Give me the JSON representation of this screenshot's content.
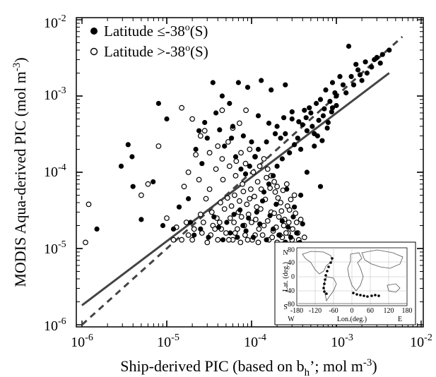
{
  "chart_data": {
    "type": "scatter",
    "scale": "log-log",
    "xlabel": {
      "text": "Ship-derived PIC (based on b",
      "sub": "h",
      "text2": "’; mol m",
      "sup": "-3",
      "text3": ")"
    },
    "ylabel": {
      "text": "MODIS Aqua-derived PIC (mol m",
      "sup": "-3",
      "text2": ")"
    },
    "xlim": [
      1e-06,
      0.01
    ],
    "ylim": [
      1e-06,
      0.01
    ],
    "ticks": [
      {
        "base": "10",
        "exp": "-6"
      },
      {
        "base": "10",
        "exp": "-5"
      },
      {
        "base": "10",
        "exp": "-4"
      },
      {
        "base": "10",
        "exp": "-3"
      },
      {
        "base": "10",
        "exp": "-2"
      }
    ],
    "legend_position": "top-left",
    "series": [
      {
        "name": "Latitude ≤-38°(S)",
        "legend": {
          "a": "Latitude ≤-38",
          "sup": "o",
          "b": "(S)"
        },
        "marker": "filled",
        "color": "#000000",
        "points": [
          [
            1.5e-06,
            1.8e-05
          ],
          [
            3.5e-06,
            0.00023
          ],
          [
            2.9e-06,
            0.00012
          ],
          [
            3.9e-06,
            0.00016
          ],
          [
            4e-06,
            6.5e-05
          ],
          [
            5e-06,
            2.4e-05
          ],
          [
            6.9e-06,
            7.5e-05
          ],
          [
            8e-06,
            0.0008
          ],
          [
            9e-06,
            2e-05
          ],
          [
            1e-05,
            0.0005
          ],
          [
            1.2e-05,
            1.8e-05
          ],
          [
            1.4e-05,
            3.5e-05
          ],
          [
            1.8e-05,
            4.5e-05
          ],
          [
            2.2e-05,
            0.0002
          ],
          [
            2.8e-05,
            0.00045
          ],
          [
            3.5e-05,
            0.0015
          ],
          [
            4.5e-05,
            0.001
          ],
          [
            5.5e-05,
            0.0008
          ],
          [
            7e-05,
            0.0015
          ],
          [
            9e-05,
            0.0013
          ],
          [
            0.00013,
            0.0016
          ],
          [
            0.00017,
            0.0012
          ],
          [
            0.00025,
            0.0014
          ],
          [
            6e-05,
            0.0004
          ],
          [
            8e-05,
            0.0003
          ],
          [
            0.00012,
            0.00055
          ],
          [
            0.00015,
            0.00025
          ],
          [
            0.0002,
            0.0004
          ],
          [
            0.00025,
            0.00032
          ],
          [
            0.0003,
            0.0005
          ],
          [
            0.00035,
            0.00028
          ],
          [
            0.0004,
            0.00042
          ],
          [
            0.00045,
            0.00035
          ],
          [
            0.0005,
            0.0006
          ],
          [
            0.00055,
            0.00022
          ],
          [
            0.0006,
            0.0003
          ],
          [
            0.0007,
            0.00055
          ],
          [
            0.0008,
            0.00045
          ],
          [
            0.0009,
            0.0007
          ],
          [
            0.001,
            0.001
          ],
          [
            0.0012,
            0.0014
          ],
          [
            0.0015,
            0.0018
          ],
          [
            0.0018,
            0.0022
          ],
          [
            0.0022,
            0.0028
          ],
          [
            0.0026,
            0.0024
          ],
          [
            0.003,
            0.0032
          ],
          [
            0.0035,
            0.0035
          ],
          [
            0.0042,
            0.004
          ],
          [
            0.0014,
            0.0045
          ],
          [
            0.0011,
            0.0018
          ],
          [
            0.0009,
            0.0015
          ],
          [
            0.00075,
            0.0012
          ],
          [
            0.00065,
            0.0009
          ],
          [
            0.00058,
            0.0008
          ],
          [
            0.00048,
            0.0007
          ],
          [
            0.00042,
            0.00065
          ],
          [
            0.00038,
            0.0002
          ],
          [
            0.00032,
            0.00023
          ],
          [
            0.00028,
            0.00018
          ],
          [
            0.00023,
            0.00015
          ],
          [
            0.0002,
            0.00012
          ],
          [
            0.00018,
            9e-05
          ],
          [
            0.00016,
            7e-05
          ],
          [
            0.00014,
            5.5e-05
          ],
          [
            0.00026,
            6e-05
          ],
          [
            0.00032,
            3.5e-05
          ],
          [
            0.00038,
            5e-05
          ],
          [
            0.00045,
            0.0001
          ],
          [
            0.00065,
            6.5e-05
          ],
          [
            0.00012,
            0.0002
          ],
          [
            0.0001,
            0.00025
          ],
          [
            0.00011,
            0.00016
          ],
          [
            9.5e-05,
            0.00012
          ],
          [
            8.5e-05,
            9.5e-05
          ],
          [
            7.5e-05,
            0.00011
          ],
          [
            6.5e-05,
            0.00016
          ],
          [
            5.8e-05,
            0.00028
          ],
          [
            4.8e-05,
            0.00022
          ],
          [
            4.2e-05,
            0.00036
          ],
          [
            3.8e-05,
            0.0006
          ],
          [
            3e-05,
            0.00028
          ],
          [
            2.6e-05,
            0.00013
          ],
          [
            2.4e-05,
            0.00035
          ],
          [
            1.9e-05,
            2.2e-05
          ],
          [
            2.1e-05,
            1.5e-05
          ],
          [
            2.5e-05,
            1.8e-05
          ],
          [
            3.1e-05,
            1.4e-05
          ],
          [
            3.6e-05,
            2.6e-05
          ],
          [
            4.1e-05,
            1.9e-05
          ],
          [
            4.6e-05,
            1.3e-05
          ],
          [
            5.1e-05,
            2.2e-05
          ],
          [
            5.6e-05,
            1.6e-05
          ],
          [
            6.2e-05,
            2.8e-05
          ],
          [
            6.8e-05,
            1.4e-05
          ],
          [
            7.3e-05,
            3.2e-05
          ],
          [
            7.9e-05,
            2e-05
          ],
          [
            8.6e-05,
            1.7e-05
          ],
          [
            9.2e-05,
            2.5e-05
          ],
          [
            0.000105,
            1.4e-05
          ],
          [
            0.000115,
            3e-05
          ],
          [
            0.000125,
            2.1e-05
          ],
          [
            0.000135,
            4.2e-05
          ],
          [
            0.00015,
            1.3e-05
          ],
          [
            0.000165,
            2.7e-05
          ],
          [
            0.00018,
            1.8e-05
          ],
          [
            0.000195,
            3.8e-05
          ],
          [
            0.00021,
            1.5e-05
          ],
          [
            0.00023,
            2.3e-05
          ],
          [
            0.00025,
            1.2e-05
          ],
          [
            0.00027,
            1.9e-05
          ],
          [
            0.00029,
            1.4e-05
          ],
          [
            0.00031,
            2.6e-05
          ],
          [
            0.00034,
            1.6e-05
          ],
          [
            0.00037,
            1.2e-05
          ],
          [
            0.0004,
            2.1e-05
          ],
          [
            0.00055,
            0.00032
          ],
          [
            0.00062,
            0.00048
          ],
          [
            0.00072,
            0.00068
          ],
          [
            0.00084,
            0.00085
          ],
          [
            0.00096,
            0.0011
          ],
          [
            0.0013,
            0.0011
          ],
          [
            0.0016,
            0.0014
          ],
          [
            0.0019,
            0.0019
          ],
          [
            0.0023,
            0.002
          ],
          [
            0.0028,
            0.003
          ],
          [
            0.0017,
            0.0026
          ],
          [
            0.002,
            0.0016
          ],
          [
            0.0033,
            0.0027
          ],
          [
            0.001,
            0.00075
          ],
          [
            0.00088,
            0.00062
          ],
          [
            0.00078,
            0.00038
          ],
          [
            0.00068,
            0.00026
          ],
          [
            0.00052,
            0.0004
          ],
          [
            0.00044,
            0.00052
          ],
          [
            0.00036,
            0.00046
          ],
          [
            0.0003,
            0.00062
          ],
          [
            0.00024,
            0.00052
          ],
          [
            0.00022,
            0.00028
          ],
          [
            0.00019,
            0.00032
          ],
          [
            0.00016,
            0.00044
          ]
        ]
      },
      {
        "name": "Latitude >-38°(S)",
        "legend": {
          "a": "Latitude >-38",
          "sup": "o",
          "b": "(S)"
        },
        "marker": "open",
        "color": "#000000",
        "points": [
          [
            1.2e-06,
            3.8e-05
          ],
          [
            1.1e-06,
            1.2e-05
          ],
          [
            5e-06,
            5e-05
          ],
          [
            6e-06,
            7e-05
          ],
          [
            8e-06,
            0.00022
          ],
          [
            1e-05,
            2.5e-05
          ],
          [
            1.2e-05,
            1.3e-05
          ],
          [
            1.5e-05,
            1.3e-05
          ],
          [
            1.8e-05,
            1.5e-05
          ],
          [
            2e-05,
            1.3e-05
          ],
          [
            2.2e-05,
            0.00017
          ],
          [
            2.5e-05,
            2.8e-05
          ],
          [
            2.8e-05,
            0.00035
          ],
          [
            3e-05,
            1.2e-05
          ],
          [
            3.2e-05,
            6e-05
          ],
          [
            3.5e-05,
            2e-05
          ],
          [
            3.8e-05,
            0.00011
          ],
          [
            4e-05,
            1.3e-05
          ],
          [
            4.3e-05,
            4e-05
          ],
          [
            4.6e-05,
            8e-05
          ],
          [
            5e-05,
            1.6e-05
          ],
          [
            5.3e-05,
            0.00025
          ],
          [
            5.6e-05,
            2.5e-05
          ],
          [
            6e-05,
            1.3e-05
          ],
          [
            6.3e-05,
            5e-05
          ],
          [
            6.6e-05,
            0.00014
          ],
          [
            7e-05,
            3e-05
          ],
          [
            7.4e-05,
            1.2e-05
          ],
          [
            7.8e-05,
            7e-05
          ],
          [
            8.2e-05,
            2e-05
          ],
          [
            8.6e-05,
            0.00065
          ],
          [
            9e-05,
            1.3e-05
          ],
          [
            9.5e-05,
            4.5e-05
          ],
          [
            0.0001,
            2.2e-05
          ],
          [
            0.000105,
            0.0001
          ],
          [
            0.00011,
            1.5e-05
          ],
          [
            0.000115,
            3.5e-05
          ],
          [
            0.00012,
            1.2e-05
          ],
          [
            0.00013,
            6e-05
          ],
          [
            0.00014,
            2e-05
          ],
          [
            0.00015,
            8.5e-05
          ],
          [
            0.00016,
            1.3e-05
          ],
          [
            0.00017,
            3e-05
          ],
          [
            0.00018,
            1.7e-05
          ],
          [
            0.00019,
            5.5e-05
          ],
          [
            0.0002,
            1.2e-05
          ],
          [
            0.00021,
            2.6e-05
          ],
          [
            0.00022,
            4e-05
          ],
          [
            0.00023,
            1.4e-05
          ],
          [
            0.00024,
            2e-05
          ],
          [
            0.00025,
            1.2e-05
          ],
          [
            0.00026,
            7e-05
          ],
          [
            0.00027,
            1.6e-05
          ],
          [
            0.00028,
            3.2e-05
          ],
          [
            0.0003,
            1.3e-05
          ],
          [
            0.00032,
            5e-05
          ],
          [
            0.00034,
            2.2e-05
          ],
          [
            0.00036,
            1.3e-05
          ],
          [
            1.5e-05,
            0.0007
          ],
          [
            2e-05,
            0.0005
          ],
          [
            2.5e-05,
            0.0003
          ],
          [
            3.2e-05,
            0.00018
          ],
          [
            4e-05,
            0.00022
          ],
          [
            4.5e-05,
            0.00015
          ],
          [
            5.5e-05,
            0.00012
          ],
          [
            6.5e-05,
            9e-05
          ],
          [
            7.5e-05,
            0.00018
          ],
          [
            8.5e-05,
            0.00013
          ],
          [
            9.5e-05,
            0.0002
          ],
          [
            0.00011,
            0.00016
          ],
          [
            0.000125,
            0.00012
          ],
          [
            0.00014,
            0.00015
          ],
          [
            0.000155,
            0.00011
          ],
          [
            0.00017,
            9e-05
          ],
          [
            0.000185,
            7.5e-05
          ],
          [
            0.0002,
            6.5e-05
          ],
          [
            4.5e-05,
            0.00065
          ],
          [
            6e-05,
            0.00038
          ],
          [
            7.2e-05,
            0.00044
          ],
          [
            1.8e-05,
            0.0001
          ],
          [
            1.6e-05,
            6.5e-05
          ],
          [
            2.4e-05,
            8e-05
          ],
          [
            2.9e-05,
            4.5e-05
          ],
          [
            3.4e-05,
            3e-05
          ],
          [
            3.9e-05,
            2.5e-05
          ],
          [
            4.4e-05,
            1.8e-05
          ],
          [
            4.8e-05,
            3.3e-05
          ],
          [
            5.2e-05,
            4.6e-05
          ],
          [
            5.8e-05,
            3.6e-05
          ],
          [
            6.2e-05,
            2.2e-05
          ],
          [
            6.8e-05,
            1.8e-05
          ],
          [
            7.2e-05,
            4.2e-05
          ],
          [
            7.6e-05,
            2.6e-05
          ],
          [
            8e-05,
            5.6e-05
          ],
          [
            8.4e-05,
            1.5e-05
          ],
          [
            8.8e-05,
            3.8e-05
          ],
          [
            9.2e-05,
            2.8e-05
          ],
          [
            9.8e-05,
            6e-05
          ],
          [
            0.000102,
            1.3e-05
          ],
          [
            0.000108,
            4.8e-05
          ],
          [
            0.000112,
            2.4e-05
          ],
          [
            0.000118,
            7.5e-05
          ],
          [
            0.000122,
            1.8e-05
          ],
          [
            0.000128,
            3.3e-05
          ],
          [
            0.000135,
            1.5e-05
          ],
          [
            0.000145,
            4.4e-05
          ],
          [
            0.000155,
            2.3e-05
          ],
          [
            0.000165,
            6.2e-05
          ],
          [
            0.000175,
            1.4e-05
          ],
          [
            0.000185,
            2.9e-05
          ],
          [
            0.000195,
            1.9e-05
          ],
          [
            0.000205,
            4.6e-05
          ],
          [
            0.000215,
            1.5e-05
          ],
          [
            0.000225,
            3.1e-05
          ],
          [
            0.000235,
            5.8e-05
          ],
          [
            0.000245,
            2.4e-05
          ],
          [
            0.000255,
            1.6e-05
          ],
          [
            0.000265,
            3.6e-05
          ],
          [
            0.000275,
            2.2e-05
          ],
          [
            0.00029,
            4.4e-05
          ],
          [
            0.000305,
            1.8e-05
          ],
          [
            0.00033,
            2.9e-05
          ],
          [
            0.00035,
            1.6e-05
          ],
          [
            0.00038,
            2.4e-05
          ],
          [
            0.00042,
            1.4e-05
          ],
          [
            1.3e-05,
            1.9e-05
          ],
          [
            1.7e-05,
            2.2e-05
          ],
          [
            2.1e-05,
            1.8e-05
          ],
          [
            2.6e-05,
            1.6e-05
          ],
          [
            2.7e-05,
            2.2e-05
          ],
          [
            3.3e-05,
            1.5e-05
          ],
          [
            3.7e-05,
            1.8e-05
          ],
          [
            4.2e-05,
            2.2e-05
          ],
          [
            5.4e-05,
            1.3e-05
          ],
          [
            6.4e-05,
            1.6e-05
          ]
        ]
      }
    ],
    "lines": [
      {
        "style": "solid",
        "x": [
          1e-06,
          0.0042
        ],
        "y": [
          1.8e-06,
          0.002
        ]
      },
      {
        "style": "dashed",
        "x": [
          1e-06,
          0.006
        ],
        "y": [
          1e-06,
          0.006
        ]
      }
    ],
    "inset": {
      "ylabel": "Lat. (deg.)",
      "xlabel": "Lon.(deg.)",
      "north": "N",
      "south": "S",
      "west": "W",
      "east": "E",
      "xticks": [
        "-180",
        "-120",
        "-60",
        "0",
        "60",
        "120",
        "180"
      ],
      "yticks": [
        "80",
        "40",
        "0",
        "-40",
        "-80"
      ]
    }
  }
}
